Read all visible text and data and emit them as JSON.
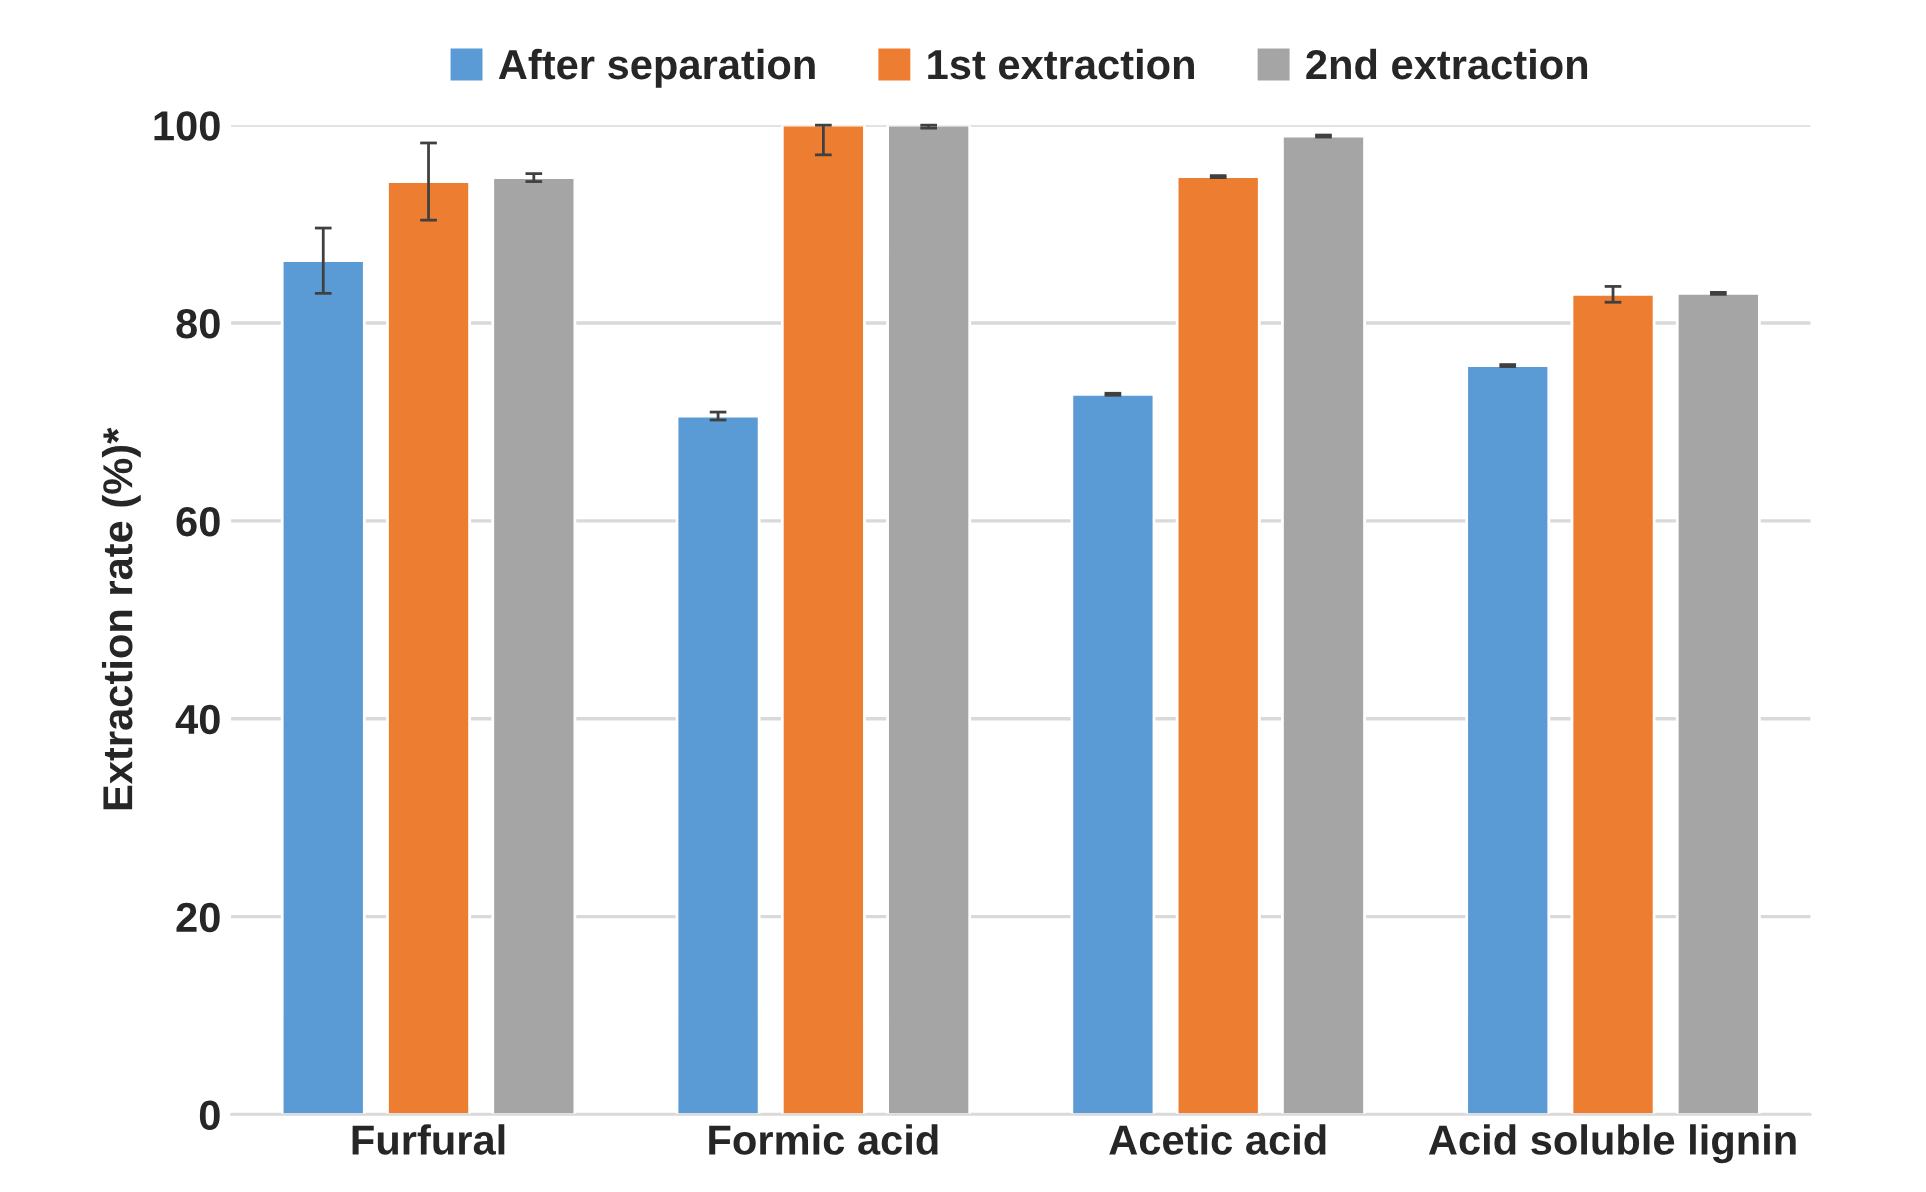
{
  "chart_data": {
    "type": "bar",
    "ylabel": "Extraction rate (%)*",
    "categories": [
      "Furfural",
      "Formic acid",
      "Acetic acid",
      "Acid soluble lignin"
    ],
    "series": [
      {
        "name": "After separation",
        "color": "#5b9bd5",
        "values": [
          86.3,
          70.6,
          72.8,
          75.7
        ],
        "errors": [
          3.3,
          0.4,
          0.1,
          0.1
        ]
      },
      {
        "name": "1st extraction",
        "color": "#ed7d31",
        "values": [
          94.3,
          100,
          94.8,
          82.9
        ],
        "errors": [
          3.9,
          [
            97.0,
            100
          ],
          0.1,
          0.8
        ]
      },
      {
        "name": "2nd extraction",
        "color": "#a5a5a5",
        "values": [
          94.7,
          100,
          98.9,
          83.0
        ],
        "errors": [
          0.4,
          [
            99.7,
            100
          ],
          0.1,
          0.1
        ]
      }
    ],
    "ylim": [
      0,
      100
    ],
    "yticks": [
      0,
      20,
      40,
      60,
      80,
      100
    ],
    "grid": "y",
    "legend": "top"
  }
}
